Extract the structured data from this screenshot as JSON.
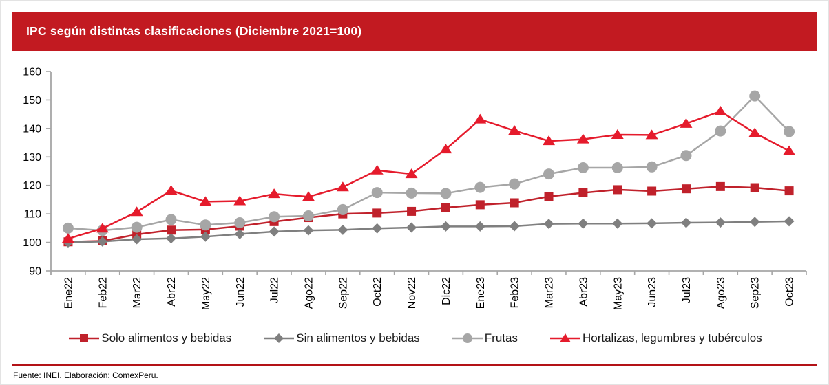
{
  "header": {
    "title": "IPC según distintas clasificaciones (Diciembre 2021=100)"
  },
  "footer": {
    "source": "Fuente: INEI. Elaboración: ComexPeru."
  },
  "colors": {
    "banner_red": "#c21a21",
    "separator_red": "#b31217",
    "axis_gray": "#a6a6a6",
    "tick_label_color": "#000000",
    "solo_alimentos_red": "#c0212b",
    "sin_alimentos_gray": "#7f7f7f",
    "frutas_gray": "#a6a6a6",
    "hortalizas_red": "#e51b2c"
  },
  "chart_data": {
    "type": "line",
    "title": "IPC según distintas clasificaciones (Diciembre 2021=100)",
    "xlabel": "",
    "ylabel": "",
    "ylim": [
      90,
      160
    ],
    "y_ticks": [
      90,
      100,
      110,
      120,
      130,
      140,
      150,
      160
    ],
    "grid": false,
    "legend_position": "bottom",
    "x": [
      "Ene22",
      "Feb22",
      "Mar22",
      "Abr22",
      "May22",
      "Jun22",
      "Jul22",
      "Ago22",
      "Sep22",
      "Oct22",
      "Nov22",
      "Dic22",
      "Ene23",
      "Feb23",
      "Mar23",
      "Abr23",
      "May23",
      "Jun23",
      "Jul23",
      "Ago23",
      "Sep23",
      "Oct23"
    ],
    "series": [
      {
        "name": "Solo alimentos y bebidas",
        "marker": "square",
        "color": "#c0212b",
        "values": [
          100.2,
          100.5,
          102.8,
          104.3,
          104.5,
          105.7,
          107.3,
          108.7,
          110.0,
          110.3,
          110.9,
          112.2,
          113.2,
          113.9,
          116.1,
          117.4,
          118.5,
          118.0,
          118.8,
          119.6,
          119.2,
          118.1
        ]
      },
      {
        "name": "Sin alimentos y bebidas",
        "marker": "diamond",
        "color": "#7f7f7f",
        "values": [
          100.0,
          100.3,
          101.1,
          101.4,
          102.0,
          102.9,
          103.8,
          104.2,
          104.4,
          104.9,
          105.2,
          105.6,
          105.6,
          105.7,
          106.5,
          106.6,
          106.6,
          106.7,
          106.9,
          107.0,
          107.2,
          107.4
        ]
      },
      {
        "name": "Frutas",
        "marker": "circle",
        "color": "#a6a6a6",
        "values": [
          105.0,
          104.2,
          105.3,
          108.0,
          106.1,
          106.9,
          109.0,
          109.3,
          111.5,
          117.5,
          117.3,
          117.2,
          119.3,
          120.5,
          124.0,
          126.2,
          126.2,
          126.5,
          130.5,
          139.1,
          151.4,
          138.9
        ]
      },
      {
        "name": "Hortalizas, legumbres y tubérculos",
        "marker": "triangle",
        "color": "#e51b2c",
        "values": [
          101.3,
          104.9,
          110.7,
          118.2,
          114.3,
          114.5,
          117.0,
          116.0,
          119.4,
          125.3,
          124.0,
          132.7,
          143.2,
          139.2,
          135.6,
          136.2,
          137.8,
          137.7,
          141.7,
          146.0,
          138.4,
          132.1
        ]
      }
    ]
  }
}
